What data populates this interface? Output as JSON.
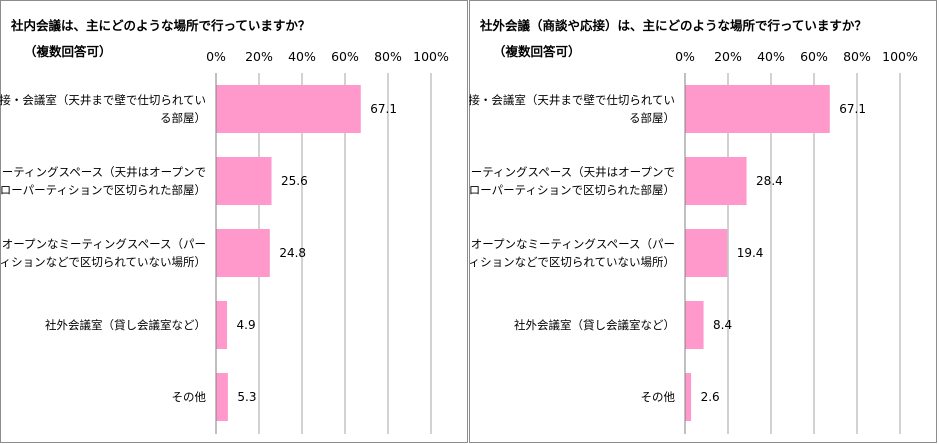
{
  "chart_data": [
    {
      "type": "bar",
      "orientation": "horizontal",
      "title": "社内会議は、主にどのような場所で行っていますか？",
      "subtitle": "（複数回答可）",
      "categories": [
        [
          "応接・会議室（天井まで壁で仕切られてい",
          "る部屋）"
        ],
        [
          "ミーティングスペース（天井はオープンで",
          "ローパーティションで区切られた部屋）"
        ],
        [
          "オープンなミーティングスペース（パー",
          "ティションなどで区切られていない場所）"
        ],
        [
          "社外会議室（貸し会議室など）"
        ],
        [
          "その他"
        ]
      ],
      "values": [
        67.1,
        25.6,
        24.8,
        4.9,
        5.3
      ],
      "value_labels": [
        "67.1",
        "25.6",
        "24.8",
        "4.9",
        "5.3"
      ],
      "xlim": [
        0,
        100
      ],
      "ticks": [
        "0%",
        "20%",
        "40%",
        "60%",
        "80%",
        "100%"
      ],
      "grid": true,
      "color": "#ff99cc"
    },
    {
      "type": "bar",
      "orientation": "horizontal",
      "title": "社外会議（商談や応接）は、主にどのような場所で行っていますか？",
      "subtitle": "（複数回答可）",
      "categories": [
        [
          "応接・会議室（天井まで壁で仕切られてい",
          "る部屋）"
        ],
        [
          "ミーティングスペース（天井はオープンで",
          "ローパーティションで区切られた部屋）"
        ],
        [
          "オープンなミーティングスペース（パー",
          "ティションなどで区切られていない場所）"
        ],
        [
          "社外会議室（貸し会議室など）"
        ],
        [
          "その他"
        ]
      ],
      "values": [
        67.1,
        28.4,
        19.4,
        8.4,
        2.6
      ],
      "value_labels": [
        "67.1",
        "28.4",
        "19.4",
        "8.4",
        "2.6"
      ],
      "xlim": [
        0,
        100
      ],
      "ticks": [
        "0%",
        "20%",
        "40%",
        "60%",
        "80%",
        "100%"
      ],
      "grid": true,
      "color": "#ff99cc"
    }
  ]
}
